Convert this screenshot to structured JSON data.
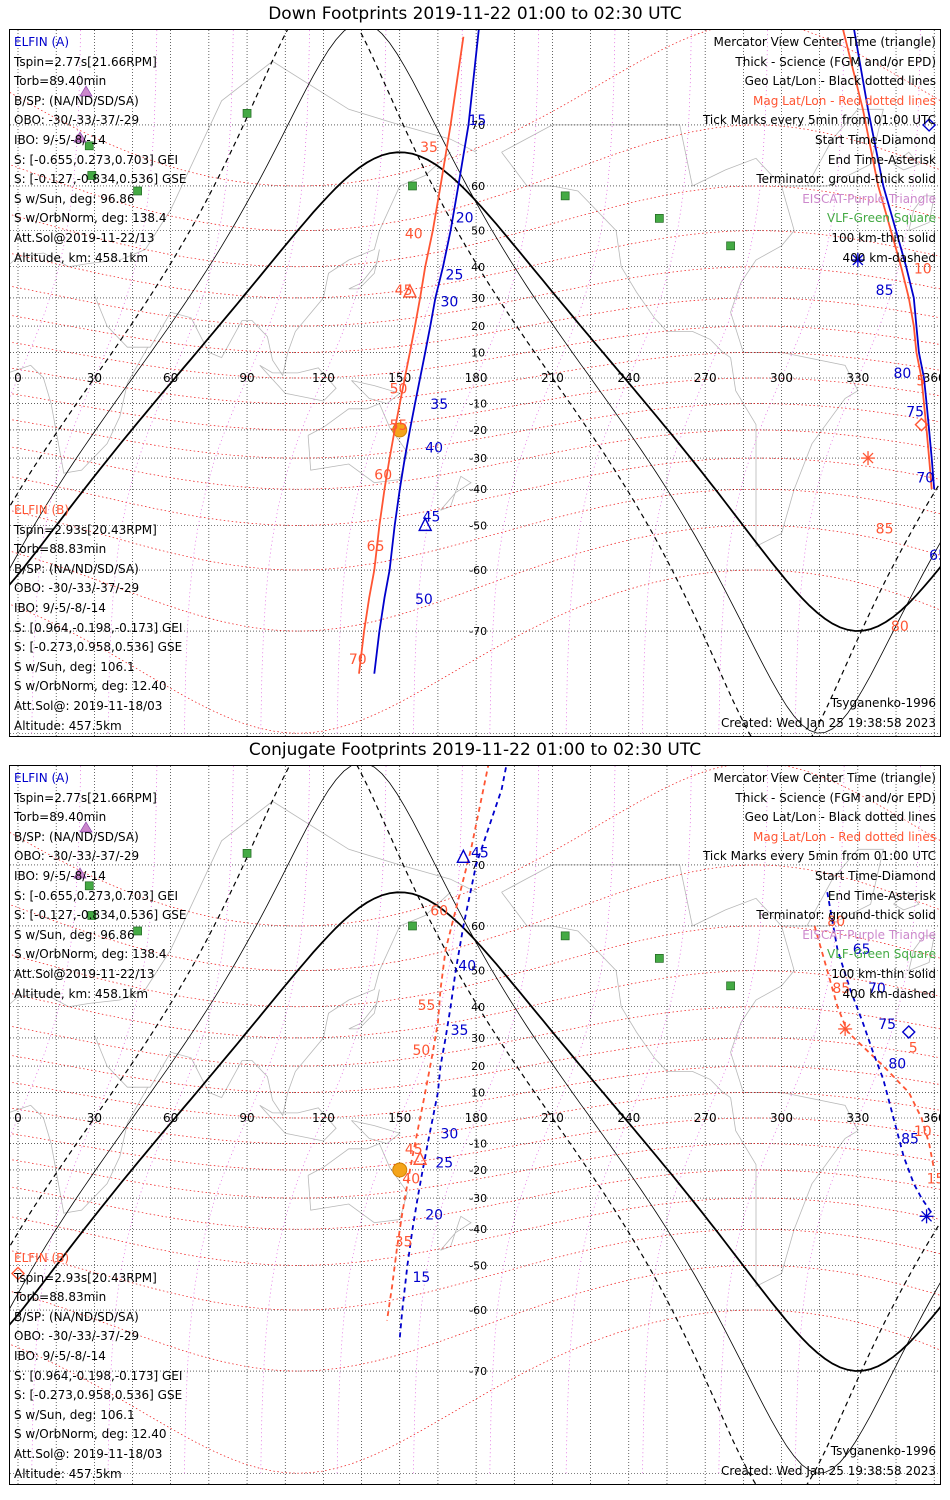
{
  "panels": [
    {
      "title": "Down Footprints 2019-11-22 01:00 to 02:30 UTC",
      "sat_a": {
        "name": "ELFIN (A)",
        "lines": [
          "Tspin=2.77s[21.66RPM]",
          "Torb=89.40min",
          "B/SP: (NA/ND/SD/SA)",
          "OBO: -30/-33/-37/-29",
          "IBO: 9/-5/-8/-14",
          "S: [-0.655,0.273,0.703] GEI",
          "S: [-0.127,-0.834,0.536] GSE",
          "S w/Sun, deg: 96.86",
          "S w/OrbNorm, deg: 138.4",
          "Att.Sol@2019-11-22/13",
          "Altitude, km: 458.1km"
        ]
      },
      "sat_b": {
        "name": "ELFIN (B)",
        "lines": [
          "Tspin=2.93s[20.43RPM]",
          "Torb=88.83min",
          "B/SP: (NA/ND/SD/SA)",
          "OBO: -30/-33/-37/-29",
          "IBO: 9/-5/-8/-14",
          "S: [0.964,-0.198,-0.173] GEI",
          "S: [-0.273,0.958,0.536] GSE",
          "S w/Sun, deg: 106.1",
          "S w/OrbNorm, deg: 12.40",
          "Att.Sol@: 2019-11-18/03",
          "Altitude: 457.5km"
        ]
      },
      "legend": [
        {
          "text": "Mercator View Center Time (triangle)",
          "color": "black"
        },
        {
          "text": "Thick - Science (FGM and/or EPD)",
          "color": "black"
        },
        {
          "text": "Geo Lat/Lon - Black dotted lines",
          "color": "black"
        },
        {
          "text": "Mag Lat/Lon - Red dotted lines",
          "color": "red"
        },
        {
          "text": "Tick Marks every 5min from 01:00 UTC",
          "color": "black"
        },
        {
          "text": "Start Time-Diamond",
          "color": "black"
        },
        {
          "text": "End Time-Asterisk",
          "color": "black"
        },
        {
          "text": "Terminator: ground-thick solid",
          "color": "black"
        },
        {
          "text": "EISCAT-Purple Triangle",
          "color": "purple"
        },
        {
          "text": "VLF-Green Square",
          "color": "green"
        },
        {
          "text": "100 km-thin solid",
          "color": "black"
        },
        {
          "text": "400 km-dashed",
          "color": "black"
        }
      ],
      "footer_left": "Tsyganenko-1996",
      "footer_right": "Created: Wed Jan 25 19:38:58 2023"
    },
    {
      "title": "Conjugate Footprints 2019-11-22 01:00 to 02:30 UTC",
      "sat_a": {
        "name": "ELFIN (A)",
        "lines": [
          "Tspin=2.77s[21.66RPM]",
          "Torb=89.40min",
          "B/SP: (NA/ND/SD/SA)",
          "OBO: -30/-33/-37/-29",
          "IBO: 9/-5/-8/-14",
          "S: [-0.655,0.273,0.703] GEI",
          "S: [-0.127,-0.834,0.536] GSE",
          "S w/Sun, deg: 96.86",
          "S w/OrbNorm, deg: 138.4",
          "Att.Sol@2019-11-22/13",
          "Altitude, km: 458.1km"
        ]
      },
      "sat_b": {
        "name": "ELFIN (B)",
        "lines": [
          "Tspin=2.93s[20.43RPM]",
          "Torb=88.83min",
          "B/SP: (NA/ND/SD/SA)",
          "OBO: -30/-33/-37/-29",
          "IBO: 9/-5/-8/-14",
          "S: [0.964,-0.198,-0.173] GEI",
          "S: [-0.273,0.958,0.536] GSE",
          "S w/Sun, deg: 106.1",
          "S w/OrbNorm, deg: 12.40",
          "Att.Sol@: 2019-11-18/03",
          "Altitude: 457.5km"
        ]
      },
      "legend": [
        {
          "text": "Mercator View Center Time (triangle)",
          "color": "black"
        },
        {
          "text": "Thick - Science (FGM and/or EPD)",
          "color": "black"
        },
        {
          "text": "Geo Lat/Lon - Black dotted lines",
          "color": "black"
        },
        {
          "text": "Mag Lat/Lon - Red dotted lines",
          "color": "red"
        },
        {
          "text": "Tick Marks every 5min from 01:00 UTC",
          "color": "black"
        },
        {
          "text": "Start Time-Diamond",
          "color": "black"
        },
        {
          "text": "End Time-Asterisk",
          "color": "black"
        },
        {
          "text": "Terminator: ground-thick solid",
          "color": "black"
        },
        {
          "text": "EISCAT-Purple Triangle",
          "color": "purple"
        },
        {
          "text": "VLF-Green Square",
          "color": "green"
        },
        {
          "text": "100 km-thin solid",
          "color": "black"
        },
        {
          "text": "400 km-dashed",
          "color": "black"
        }
      ],
      "footer_left": "Tsyganenko-1996",
      "footer_right": "Created: Wed Jan 25 19:38:58 2023"
    }
  ],
  "colors": {
    "sat_a": "#0000cc",
    "sat_b": "#ff5533",
    "geo_grid": "#000000",
    "mag_grid": "#ee1111",
    "eiscat": "#cc88cc",
    "vlf": "#44aa44",
    "sun": "#f4a41a",
    "coast": "#b8b8b8"
  },
  "map": {
    "lon_labels": [
      "0",
      "30",
      "60",
      "90",
      "120",
      "150",
      "180",
      "210",
      "240",
      "270",
      "300",
      "330",
      "360"
    ],
    "lat_labels": [
      "70",
      "60",
      "50",
      "40",
      "30",
      "20",
      "10",
      "-10",
      "-20",
      "-30",
      "-40",
      "-50",
      "-60",
      "-70"
    ]
  },
  "vlf_stations": [
    [
      90,
      71.5
    ],
    [
      28,
      67
    ],
    [
      29,
      62
    ],
    [
      47,
      59
    ],
    [
      155,
      60
    ],
    [
      215,
      58
    ],
    [
      252,
      53
    ],
    [
      280,
      46
    ]
  ],
  "down": {
    "a_trace": [
      [
        182,
        81
      ],
      [
        177,
        70
      ],
      [
        173,
        60
      ],
      [
        170,
        50
      ],
      [
        167,
        40
      ],
      [
        164,
        30
      ],
      [
        162,
        20
      ],
      [
        160,
        10
      ],
      [
        158,
        0
      ],
      [
        156,
        -10
      ],
      [
        154,
        -20
      ],
      [
        152,
        -30
      ],
      [
        150,
        -40
      ],
      [
        148,
        -50
      ],
      [
        146,
        -60
      ],
      [
        144,
        -65
      ],
      [
        142,
        -70
      ],
      [
        140,
        -75
      ]
    ],
    "b_trace": [
      [
        175,
        79
      ],
      [
        170,
        70
      ],
      [
        166,
        60
      ],
      [
        163,
        50
      ],
      [
        160,
        40
      ],
      [
        158,
        30
      ],
      [
        156,
        20
      ],
      [
        154,
        10
      ],
      [
        152,
        0
      ],
      [
        150,
        -10
      ],
      [
        148,
        -20
      ],
      [
        146,
        -30
      ],
      [
        144,
        -40
      ],
      [
        142,
        -50
      ],
      [
        140,
        -60
      ],
      [
        138,
        -65
      ],
      [
        136,
        -70
      ],
      [
        134,
        -75
      ]
    ],
    "a_ticks": [
      {
        "t": "15",
        "lon": 177,
        "lat": 70
      },
      {
        "t": "20",
        "lon": 172,
        "lat": 52
      },
      {
        "t": "25",
        "lon": 168,
        "lat": 36
      },
      {
        "t": "30",
        "lon": 166,
        "lat": 27
      },
      {
        "t": "35",
        "lon": 162,
        "lat": -12
      },
      {
        "t": "40",
        "lon": 160,
        "lat": -28
      },
      {
        "t": "45",
        "lon": 159,
        "lat": -49
      },
      {
        "t": "50",
        "lon": 156,
        "lat": -66
      }
    ],
    "b_ticks": [
      {
        "t": "35",
        "lon": 158,
        "lat": 66
      },
      {
        "t": "40",
        "lon": 152,
        "lat": 48
      },
      {
        "t": "45",
        "lon": 148,
        "lat": 31
      },
      {
        "t": "50",
        "lon": 146,
        "lat": -6
      },
      {
        "t": "55",
        "lon": 146,
        "lat": -20
      },
      {
        "t": "60",
        "lon": 140,
        "lat": -37
      },
      {
        "t": "65",
        "lon": 137,
        "lat": -56
      },
      {
        "t": "70",
        "lon": 130,
        "lat": -74
      }
    ],
    "a_trace2": [
      [
        327,
        81
      ],
      [
        334,
        72
      ],
      [
        340,
        60
      ],
      [
        345,
        50
      ],
      [
        349,
        40
      ],
      [
        352,
        30
      ],
      [
        353,
        20
      ],
      [
        354,
        10
      ],
      [
        356,
        0
      ],
      [
        357,
        -10
      ],
      [
        358,
        -20
      ],
      [
        359,
        -30
      ],
      [
        360,
        -40
      ]
    ],
    "b_trace2": [
      [
        322,
        81
      ],
      [
        332,
        72
      ],
      [
        338,
        60
      ],
      [
        343,
        50
      ],
      [
        347,
        40
      ],
      [
        350,
        30
      ],
      [
        352,
        20
      ],
      [
        353,
        10
      ],
      [
        355,
        0
      ],
      [
        356,
        -10
      ],
      [
        357,
        -20
      ],
      [
        358,
        -30
      ],
      [
        359,
        -40
      ]
    ],
    "a_ticks2": [
      {
        "t": "85",
        "lon": 337,
        "lat": 31
      },
      {
        "t": "80",
        "lon": 344,
        "lat": 0
      },
      {
        "t": "75",
        "lon": 349,
        "lat": -15
      },
      {
        "t": "70",
        "lon": 353,
        "lat": -38
      },
      {
        "t": "65",
        "lon": 358,
        "lat": -58
      }
    ],
    "b_ticks2": [
      {
        "t": "10",
        "lon": 352,
        "lat": 38
      },
      {
        "t": "5",
        "lon": 353,
        "lat": -3
      },
      {
        "t": "85",
        "lon": 337,
        "lat": -52
      },
      {
        "t": "80",
        "lon": 343,
        "lat": -70
      }
    ],
    "center_a": [
      160,
      -50
    ],
    "center_b": [
      154,
      32
    ],
    "start_a": [
      358,
      70
    ],
    "start_b": [
      355,
      -18
    ],
    "end_a": [
      330,
      42
    ],
    "end_b": [
      334,
      -30
    ],
    "sun": [
      150,
      -20
    ]
  },
  "conj": {
    "a_trace": [
      [
        200,
        85
      ],
      [
        190,
        78
      ],
      [
        180,
        70
      ],
      [
        175,
        60
      ],
      [
        172,
        50
      ],
      [
        170,
        40
      ],
      [
        168,
        30
      ],
      [
        166,
        20
      ],
      [
        165,
        10
      ],
      [
        163,
        0
      ],
      [
        161,
        -10
      ],
      [
        159,
        -20
      ],
      [
        157,
        -30
      ],
      [
        155,
        -40
      ],
      [
        153,
        -50
      ],
      [
        151,
        -60
      ],
      [
        150,
        -65
      ]
    ],
    "b_trace": [
      [
        185,
        80
      ],
      [
        178,
        72
      ],
      [
        172,
        63
      ],
      [
        168,
        55
      ],
      [
        166,
        45
      ],
      [
        165,
        35
      ],
      [
        163,
        25
      ],
      [
        161,
        15
      ],
      [
        159,
        5
      ],
      [
        157,
        -5
      ],
      [
        155,
        -15
      ],
      [
        153,
        -25
      ],
      [
        151,
        -35
      ],
      [
        149,
        -45
      ],
      [
        147,
        -55
      ],
      [
        145,
        -62
      ]
    ],
    "a_ticks": [
      {
        "t": "45",
        "lon": 178,
        "lat": 71
      },
      {
        "t": "40",
        "lon": 173,
        "lat": 50
      },
      {
        "t": "35",
        "lon": 170,
        "lat": 31
      },
      {
        "t": "30",
        "lon": 166,
        "lat": -8
      },
      {
        "t": "25",
        "lon": 164,
        "lat": -19
      },
      {
        "t": "20",
        "lon": 160,
        "lat": -37
      },
      {
        "t": "15",
        "lon": 155,
        "lat": -54
      }
    ],
    "b_ticks": [
      {
        "t": "65",
        "lon": 176,
        "lat": 82
      },
      {
        "t": "60",
        "lon": 162,
        "lat": 62
      },
      {
        "t": "55",
        "lon": 157,
        "lat": 39
      },
      {
        "t": "50",
        "lon": 155,
        "lat": 24
      },
      {
        "t": "45",
        "lon": 152,
        "lat": -14
      },
      {
        "t": "40",
        "lon": 151,
        "lat": -25
      },
      {
        "t": "35",
        "lon": 148,
        "lat": -45
      }
    ],
    "a_trace2": [
      [
        318,
        66
      ],
      [
        322,
        55
      ],
      [
        327,
        45
      ],
      [
        332,
        35
      ],
      [
        336,
        25
      ],
      [
        340,
        15
      ],
      [
        344,
        0
      ],
      [
        348,
        -15
      ],
      [
        352,
        -25
      ],
      [
        355,
        -30
      ],
      [
        359,
        -35
      ]
    ],
    "b_trace2": [
      [
        313,
        60
      ],
      [
        318,
        50
      ],
      [
        322,
        40
      ],
      [
        326,
        32
      ],
      [
        340,
        20
      ],
      [
        350,
        10
      ],
      [
        355,
        0
      ],
      [
        358,
        -10
      ],
      [
        360,
        -20
      ]
    ],
    "a_ticks2": [
      {
        "t": "65",
        "lon": 328,
        "lat": 54
      },
      {
        "t": "70",
        "lon": 334,
        "lat": 44
      },
      {
        "t": "75",
        "lon": 338,
        "lat": 33
      },
      {
        "t": "80",
        "lon": 342,
        "lat": 19
      },
      {
        "t": "85",
        "lon": 347,
        "lat": -10
      }
    ],
    "b_ticks2": [
      {
        "t": "80",
        "lon": 318,
        "lat": 60
      },
      {
        "t": "85",
        "lon": 320,
        "lat": 44
      },
      {
        "t": "5",
        "lon": 350,
        "lat": 25
      },
      {
        "t": "10",
        "lon": 352,
        "lat": -7
      },
      {
        "t": "15",
        "lon": 357,
        "lat": -25
      }
    ],
    "center_a": [
      175,
      71
    ],
    "center_b": [
      158,
      -16
    ],
    "start_a": [
      350,
      32
    ],
    "start_b": [
      0,
      -52
    ],
    "end_a": [
      357,
      -36
    ],
    "end_b": [
      325,
      33
    ],
    "sun": [
      150,
      -20
    ]
  }
}
